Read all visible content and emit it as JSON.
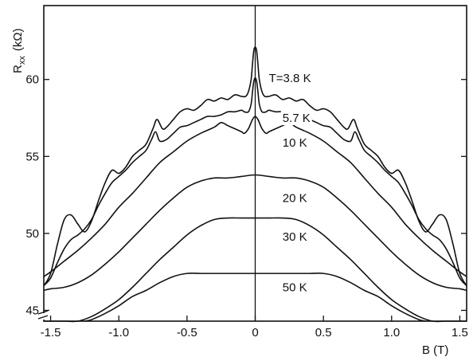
{
  "chart_data": {
    "type": "line",
    "xlabel": "B (T)",
    "ylabel": "R",
    "ylabel_subscript": "xx",
    "ylabel_unit": "(kΩ)",
    "xlim": [
      -1.55,
      1.55
    ],
    "ylim": [
      44.3,
      64.8
    ],
    "x_ticks": [
      -1.5,
      -1.0,
      -0.5,
      0,
      0.5,
      1.0,
      1.5
    ],
    "x_tick_labels": [
      "-1.5",
      "-1.0",
      "-0.5",
      "0",
      "0.5",
      "1.0",
      "1.5"
    ],
    "y_ticks": [
      45,
      50,
      55,
      60
    ],
    "y_tick_labels": [
      "45",
      "50",
      "55",
      "60"
    ],
    "series": [
      {
        "name": "T=3.8 K",
        "label_at": [
          0.1,
          60.1
        ],
        "x": [
          0,
          0.01,
          0.02,
          0.03,
          0.05,
          0.07,
          0.1,
          0.15,
          0.2,
          0.25,
          0.3,
          0.35,
          0.4,
          0.45,
          0.5,
          0.55,
          0.6,
          0.65,
          0.68,
          0.72,
          0.75,
          0.8,
          0.85,
          0.9,
          0.95,
          1.0,
          1.05,
          1.1,
          1.15,
          1.2,
          1.25,
          1.3,
          1.35,
          1.4,
          1.45,
          1.5,
          1.55
        ],
        "y": [
          62.1,
          61.9,
          61.0,
          60.0,
          59.2,
          58.9,
          58.9,
          59.0,
          58.7,
          58.8,
          58.6,
          58.7,
          58.3,
          58.0,
          58.1,
          57.9,
          57.4,
          56.9,
          56.8,
          57.4,
          56.8,
          55.8,
          55.4,
          55.0,
          54.3,
          53.9,
          54.1,
          53.3,
          52.1,
          50.8,
          50.1,
          50.6,
          51.2,
          50.9,
          49.3,
          47.4,
          46.6
        ]
      },
      {
        "name": "5.7 K",
        "label_at": [
          0.2,
          57.5
        ],
        "x": [
          0,
          0.01,
          0.02,
          0.03,
          0.05,
          0.08,
          0.1,
          0.15,
          0.2,
          0.25,
          0.3,
          0.35,
          0.4,
          0.45,
          0.5,
          0.55,
          0.6,
          0.65,
          0.7,
          0.73,
          0.76,
          0.8,
          0.85,
          0.9,
          0.95,
          1.0,
          1.05,
          1.1,
          1.15,
          1.2,
          1.25,
          1.3,
          1.35,
          1.4,
          1.45,
          1.5,
          1.55
        ],
        "y": [
          60.1,
          59.9,
          59.2,
          58.4,
          57.9,
          57.9,
          58.0,
          57.9,
          57.9,
          57.7,
          57.6,
          57.6,
          57.4,
          57.2,
          57.0,
          56.9,
          56.5,
          56.1,
          56.0,
          56.6,
          56.1,
          55.4,
          55.0,
          54.6,
          54.1,
          53.7,
          53.3,
          52.6,
          51.8,
          50.9,
          50.3,
          49.9,
          49.6,
          49.0,
          48.1,
          47.1,
          46.6
        ]
      },
      {
        "name": "10 K",
        "label_at": [
          0.2,
          55.9
        ],
        "x": [
          0,
          0.02,
          0.05,
          0.08,
          0.1,
          0.15,
          0.2,
          0.25,
          0.3,
          0.4,
          0.5,
          0.6,
          0.7,
          0.8,
          0.9,
          1.0,
          1.1,
          1.2,
          1.3,
          1.4,
          1.5,
          1.55
        ],
        "y": [
          57.6,
          57.4,
          56.8,
          56.5,
          56.6,
          56.8,
          57.0,
          57.2,
          56.9,
          56.5,
          56.0,
          55.3,
          54.6,
          53.6,
          52.6,
          51.7,
          50.6,
          49.7,
          48.9,
          48.2,
          47.5,
          47.2
        ]
      },
      {
        "name": "20 K",
        "label_at": [
          0.2,
          52.3
        ],
        "x": [
          0,
          0.1,
          0.2,
          0.3,
          0.4,
          0.5,
          0.6,
          0.7,
          0.8,
          0.9,
          1.0,
          1.1,
          1.2,
          1.3,
          1.4,
          1.5,
          1.55
        ],
        "y": [
          53.8,
          53.7,
          53.6,
          53.6,
          53.4,
          53.0,
          52.3,
          51.5,
          50.6,
          49.7,
          48.8,
          48.0,
          47.3,
          46.8,
          46.5,
          46.4,
          46.3
        ]
      },
      {
        "name": "30 K",
        "label_at": [
          0.2,
          49.8
        ],
        "x": [
          0,
          0.1,
          0.2,
          0.3,
          0.4,
          0.5,
          0.6,
          0.7,
          0.8,
          0.9,
          1.0,
          1.1,
          1.2,
          1.3,
          1.4,
          1.5,
          1.55
        ],
        "y": [
          51.0,
          51.0,
          51.0,
          50.9,
          50.5,
          49.9,
          49.1,
          48.3,
          47.4,
          46.5,
          45.7,
          45.1,
          44.6,
          44.3,
          44.3,
          44.3,
          44.3
        ]
      },
      {
        "name": "50 K",
        "label_at": [
          0.2,
          46.5
        ],
        "x": [
          0,
          0.1,
          0.2,
          0.3,
          0.4,
          0.5,
          0.6,
          0.7,
          0.8,
          0.9,
          1.0,
          1.1,
          1.2,
          1.25
        ],
        "y": [
          47.4,
          47.4,
          47.4,
          47.4,
          47.4,
          47.4,
          47.2,
          46.8,
          46.3,
          45.9,
          45.3,
          44.8,
          44.4,
          44.3
        ]
      }
    ],
    "grid": false,
    "legend": "none"
  }
}
